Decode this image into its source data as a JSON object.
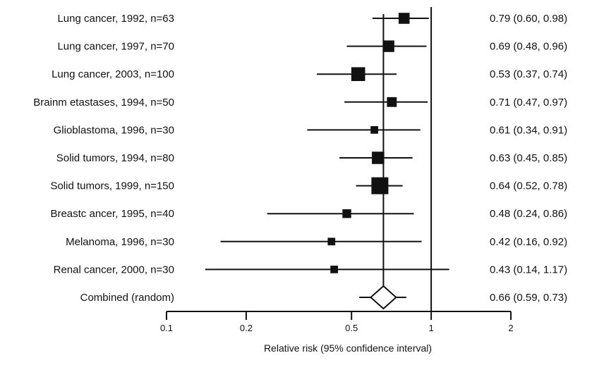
{
  "chart_data": {
    "type": "forest",
    "x_scale": "log",
    "xlim": [
      0.1,
      2
    ],
    "xlabel": "Relative risk (95% confidence interval)",
    "x_ticks": [
      {
        "value": 0.1,
        "label": "0.1"
      },
      {
        "value": 0.2,
        "label": "0.2"
      },
      {
        "value": 0.5,
        "label": "0.5"
      },
      {
        "value": 1,
        "label": "1"
      },
      {
        "value": 2,
        "label": "2"
      }
    ],
    "reference_line": 1,
    "pooled_line": 0.66,
    "studies": [
      {
        "label": "Lung cancer, 1992, n=63",
        "rr": 0.79,
        "lo": 0.6,
        "hi": 0.98,
        "ci_text": "0.79 (0.60, 0.98)",
        "n": 63
      },
      {
        "label": "Lung cancer, 1997, n=70",
        "rr": 0.69,
        "lo": 0.48,
        "hi": 0.96,
        "ci_text": "0.69 (0.48, 0.96)",
        "n": 70
      },
      {
        "label": "Lung cancer, 2003, n=100",
        "rr": 0.53,
        "lo": 0.37,
        "hi": 0.74,
        "ci_text": "0.53 (0.37, 0.74)",
        "n": 100
      },
      {
        "label": "Brainm etastases, 1994, n=50",
        "rr": 0.71,
        "lo": 0.47,
        "hi": 0.97,
        "ci_text": "0.71 (0.47, 0.97)",
        "n": 50
      },
      {
        "label": "Glioblastoma, 1996, n=30",
        "rr": 0.61,
        "lo": 0.34,
        "hi": 0.91,
        "ci_text": "0.61 (0.34, 0.91)",
        "n": 30
      },
      {
        "label": "Solid tumors, 1994, n=80",
        "rr": 0.63,
        "lo": 0.45,
        "hi": 0.85,
        "ci_text": "0.63 (0.45, 0.85)",
        "n": 80
      },
      {
        "label": "Solid tumors, 1999, n=150",
        "rr": 0.64,
        "lo": 0.52,
        "hi": 0.78,
        "ci_text": "0.64 (0.52, 0.78)",
        "n": 150
      },
      {
        "label": "Breastc ancer, 1995, n=40",
        "rr": 0.48,
        "lo": 0.24,
        "hi": 0.86,
        "ci_text": "0.48 (0.24, 0.86)",
        "n": 40
      },
      {
        "label": "Melanoma, 1996, n=30",
        "rr": 0.42,
        "lo": 0.16,
        "hi": 0.92,
        "ci_text": "0.42 (0.16, 0.92)",
        "n": 30
      },
      {
        "label": "Renal cancer, 2000, n=30",
        "rr": 0.43,
        "lo": 0.14,
        "hi": 1.17,
        "ci_text": "0.43 (0.14, 1.17)",
        "n": 30
      }
    ],
    "combined": {
      "label": "Combined (random)",
      "rr": 0.66,
      "lo": 0.59,
      "hi": 0.73,
      "ci_text": "0.66 (0.59, 0.73)"
    },
    "colors": {
      "ink": "#111111",
      "background": "#ffffff"
    }
  }
}
